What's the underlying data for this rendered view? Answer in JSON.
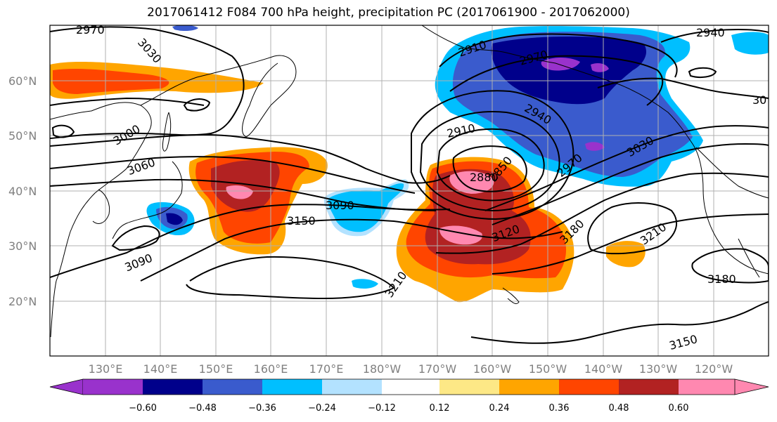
{
  "title": "2017061412 F084 700 hPa height, precipitation PC (2017061900 - 2017062000)",
  "lat_labels": [
    "60°N",
    "50°N",
    "40°N",
    "30°N",
    "20°N"
  ],
  "lon_labels": [
    "130°E",
    "140°E",
    "150°E",
    "160°E",
    "170°E",
    "180°W",
    "170°W",
    "160°W",
    "150°W",
    "140°W",
    "130°W",
    "120°W"
  ],
  "contour_labels": [
    "2970",
    "3030",
    "3000",
    "3060",
    "3090",
    "2910",
    "2970",
    "2940",
    "2910",
    "2850",
    "2880",
    "3090",
    "3150",
    "3120",
    "3180",
    "3210",
    "3210",
    "3030",
    "2970",
    "2940",
    "30",
    "3180",
    "3150",
    "3090"
  ],
  "colorbar": {
    "ticks": [
      "−0.60",
      "−0.48",
      "−0.36",
      "−0.24",
      "−0.12",
      "0.12",
      "0.24",
      "0.36",
      "0.48",
      "0.60"
    ],
    "colors": [
      "#9932cc",
      "#00008b",
      "#3a5bcd",
      "#00bfff",
      "#b3e2ff",
      "#ffffff",
      "#fde886",
      "#ffa500",
      "#ff4500",
      "#b22222",
      "#ff88b0"
    ]
  }
}
